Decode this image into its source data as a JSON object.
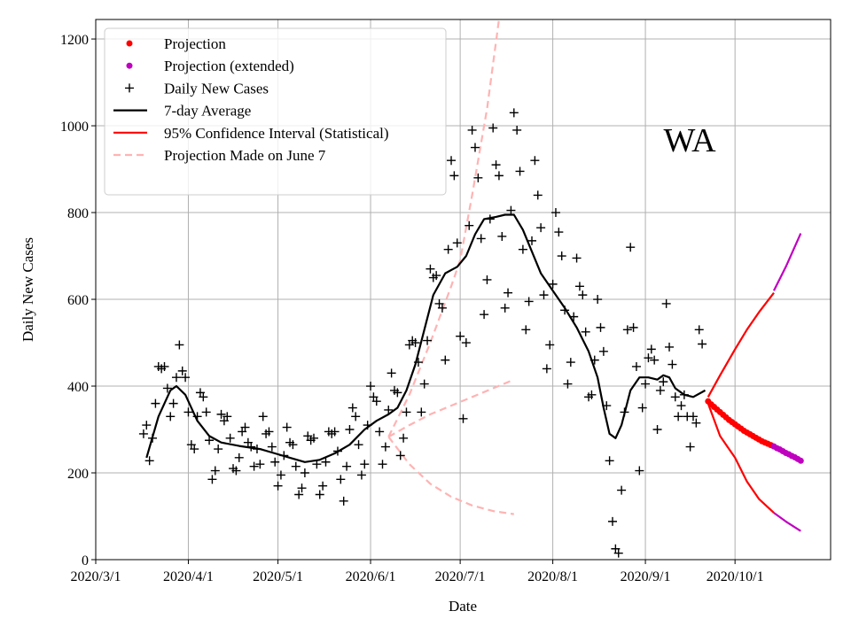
{
  "chart_data": {
    "type": "scatter",
    "annotation": "WA",
    "xlabel": "Date",
    "ylabel": "Daily New Cases",
    "xlim": [
      "2020/3/1",
      "2020/11/2"
    ],
    "ylim": [
      0,
      1245
    ],
    "grid": true,
    "legend_placement": "top-left",
    "x_ticks": [
      "2020/3/1",
      "2020/4/1",
      "2020/5/1",
      "2020/6/1",
      "2020/7/1",
      "2020/8/1",
      "2020/9/1",
      "2020/10/1"
    ],
    "y_ticks": [
      0,
      200,
      400,
      600,
      800,
      1000,
      1200
    ],
    "colors": {
      "daily": "#000000",
      "avg": "#000000",
      "projection": "#ff0000",
      "extended": "#bf00bf",
      "ci": "#ff0000",
      "june7": "#ffb3b3"
    },
    "legend": [
      {
        "label": "Projection",
        "kind": "dot",
        "color": "#ff0000"
      },
      {
        "label": "Projection (extended)",
        "kind": "dot",
        "color": "#bf00bf"
      },
      {
        "label": "Daily New Cases",
        "kind": "plus",
        "color": "#000000"
      },
      {
        "label": "7-day Average",
        "kind": "line",
        "color": "#000000"
      },
      {
        "label": "95% Confidence Interval (Statistical)",
        "kind": "line",
        "color": "#ff0000"
      },
      {
        "label": "Projection Made on June 7",
        "kind": "dash",
        "color": "#ffb3b3"
      }
    ],
    "daily_new_cases": [
      [
        "2020/3/17",
        290
      ],
      [
        "2020/3/18",
        310
      ],
      [
        "2020/3/19",
        228
      ],
      [
        "2020/3/20",
        280
      ],
      [
        "2020/3/21",
        360
      ],
      [
        "2020/3/22",
        445
      ],
      [
        "2020/3/23",
        440
      ],
      [
        "2020/3/24",
        445
      ],
      [
        "2020/3/25",
        395
      ],
      [
        "2020/3/26",
        330
      ],
      [
        "2020/3/27",
        360
      ],
      [
        "2020/3/28",
        420
      ],
      [
        "2020/3/29",
        495
      ],
      [
        "2020/3/30",
        435
      ],
      [
        "2020/3/31",
        420
      ],
      [
        "2020/4/1",
        340
      ],
      [
        "2020/4/2",
        265
      ],
      [
        "2020/4/3",
        255
      ],
      [
        "2020/4/4",
        330
      ],
      [
        "2020/4/5",
        385
      ],
      [
        "2020/4/6",
        375
      ],
      [
        "2020/4/7",
        340
      ],
      [
        "2020/4/8",
        275
      ],
      [
        "2020/4/9",
        185
      ],
      [
        "2020/4/10",
        205
      ],
      [
        "2020/4/11",
        255
      ],
      [
        "2020/4/12",
        335
      ],
      [
        "2020/4/13",
        320
      ],
      [
        "2020/4/14",
        330
      ],
      [
        "2020/4/15",
        280
      ],
      [
        "2020/4/16",
        210
      ],
      [
        "2020/4/17",
        205
      ],
      [
        "2020/4/18",
        235
      ],
      [
        "2020/4/19",
        295
      ],
      [
        "2020/4/20",
        305
      ],
      [
        "2020/4/21",
        270
      ],
      [
        "2020/4/22",
        260
      ],
      [
        "2020/4/23",
        215
      ],
      [
        "2020/4/24",
        255
      ],
      [
        "2020/4/25",
        220
      ],
      [
        "2020/4/26",
        330
      ],
      [
        "2020/4/27",
        290
      ],
      [
        "2020/4/28",
        295
      ],
      [
        "2020/4/29",
        260
      ],
      [
        "2020/4/30",
        225
      ],
      [
        "2020/5/1",
        170
      ],
      [
        "2020/5/2",
        195
      ],
      [
        "2020/5/3",
        240
      ],
      [
        "2020/5/4",
        305
      ],
      [
        "2020/5/5",
        270
      ],
      [
        "2020/5/6",
        265
      ],
      [
        "2020/5/7",
        215
      ],
      [
        "2020/5/8",
        150
      ],
      [
        "2020/5/9",
        165
      ],
      [
        "2020/5/10",
        200
      ],
      [
        "2020/5/11",
        285
      ],
      [
        "2020/5/12",
        275
      ],
      [
        "2020/5/13",
        280
      ],
      [
        "2020/5/14",
        220
      ],
      [
        "2020/5/15",
        150
      ],
      [
        "2020/5/16",
        170
      ],
      [
        "2020/5/17",
        225
      ],
      [
        "2020/5/18",
        295
      ],
      [
        "2020/5/19",
        290
      ],
      [
        "2020/5/20",
        295
      ],
      [
        "2020/5/21",
        250
      ],
      [
        "2020/5/22",
        185
      ],
      [
        "2020/5/23",
        135
      ],
      [
        "2020/5/24",
        215
      ],
      [
        "2020/5/25",
        300
      ],
      [
        "2020/5/26",
        350
      ],
      [
        "2020/5/27",
        330
      ],
      [
        "2020/5/28",
        265
      ],
      [
        "2020/5/29",
        195
      ],
      [
        "2020/5/30",
        220
      ],
      [
        "2020/5/31",
        310
      ],
      [
        "2020/6/1",
        400
      ],
      [
        "2020/6/2",
        375
      ],
      [
        "2020/6/3",
        365
      ],
      [
        "2020/6/4",
        295
      ],
      [
        "2020/6/5",
        220
      ],
      [
        "2020/6/6",
        260
      ],
      [
        "2020/6/7",
        345
      ],
      [
        "2020/6/8",
        430
      ],
      [
        "2020/6/9",
        390
      ],
      [
        "2020/6/10",
        385
      ],
      [
        "2020/6/11",
        240
      ],
      [
        "2020/6/12",
        280
      ],
      [
        "2020/6/13",
        340
      ],
      [
        "2020/6/14",
        495
      ],
      [
        "2020/6/15",
        505
      ],
      [
        "2020/6/16",
        500
      ],
      [
        "2020/6/17",
        455
      ],
      [
        "2020/6/18",
        340
      ],
      [
        "2020/6/19",
        405
      ],
      [
        "2020/6/20",
        505
      ],
      [
        "2020/6/21",
        670
      ],
      [
        "2020/6/22",
        650
      ],
      [
        "2020/6/23",
        655
      ],
      [
        "2020/6/24",
        590
      ],
      [
        "2020/6/25",
        580
      ],
      [
        "2020/6/26",
        460
      ],
      [
        "2020/6/27",
        715
      ],
      [
        "2020/6/28",
        920
      ],
      [
        "2020/6/29",
        885
      ],
      [
        "2020/6/30",
        730
      ],
      [
        "2020/7/1",
        515
      ],
      [
        "2020/7/2",
        325
      ],
      [
        "2020/7/3",
        500
      ],
      [
        "2020/7/4",
        770
      ],
      [
        "2020/7/5",
        990
      ],
      [
        "2020/7/6",
        950
      ],
      [
        "2020/7/7",
        880
      ],
      [
        "2020/7/8",
        740
      ],
      [
        "2020/7/9",
        565
      ],
      [
        "2020/7/10",
        645
      ],
      [
        "2020/7/11",
        785
      ],
      [
        "2020/7/12",
        995
      ],
      [
        "2020/7/13",
        910
      ],
      [
        "2020/7/14",
        885
      ],
      [
        "2020/7/15",
        745
      ],
      [
        "2020/7/16",
        580
      ],
      [
        "2020/7/17",
        615
      ],
      [
        "2020/7/18",
        805
      ],
      [
        "2020/7/19",
        1030
      ],
      [
        "2020/7/20",
        990
      ],
      [
        "2020/7/21",
        895
      ],
      [
        "2020/7/22",
        715
      ],
      [
        "2020/7/23",
        530
      ],
      [
        "2020/7/24",
        595
      ],
      [
        "2020/7/25",
        735
      ],
      [
        "2020/7/26",
        920
      ],
      [
        "2020/7/27",
        840
      ],
      [
        "2020/7/28",
        765
      ],
      [
        "2020/7/29",
        610
      ],
      [
        "2020/7/30",
        440
      ],
      [
        "2020/7/31",
        495
      ],
      [
        "2020/8/1",
        635
      ],
      [
        "2020/8/2",
        800
      ],
      [
        "2020/8/3",
        755
      ],
      [
        "2020/8/4",
        700
      ],
      [
        "2020/8/5",
        575
      ],
      [
        "2020/8/6",
        405
      ],
      [
        "2020/8/7",
        455
      ],
      [
        "2020/8/8",
        560
      ],
      [
        "2020/8/9",
        695
      ],
      [
        "2020/8/10",
        630
      ],
      [
        "2020/8/11",
        610
      ],
      [
        "2020/8/12",
        525
      ],
      [
        "2020/8/13",
        375
      ],
      [
        "2020/8/14",
        380
      ],
      [
        "2020/8/15",
        460
      ],
      [
        "2020/8/16",
        600
      ],
      [
        "2020/8/17",
        535
      ],
      [
        "2020/8/18",
        480
      ],
      [
        "2020/8/19",
        355
      ],
      [
        "2020/8/20",
        228
      ],
      [
        "2020/8/21",
        88
      ],
      [
        "2020/8/22",
        25
      ],
      [
        "2020/8/23",
        15
      ],
      [
        "2020/8/24",
        160
      ],
      [
        "2020/8/25",
        340
      ],
      [
        "2020/8/26",
        530
      ],
      [
        "2020/8/27",
        720
      ],
      [
        "2020/8/28",
        535
      ],
      [
        "2020/8/29",
        445
      ],
      [
        "2020/8/30",
        205
      ],
      [
        "2020/8/31",
        350
      ],
      [
        "2020/9/1",
        405
      ],
      [
        "2020/9/2",
        465
      ],
      [
        "2020/9/3",
        485
      ],
      [
        "2020/9/4",
        460
      ],
      [
        "2020/9/5",
        300
      ],
      [
        "2020/9/6",
        390
      ],
      [
        "2020/9/7",
        410
      ],
      [
        "2020/9/8",
        590
      ],
      [
        "2020/9/9",
        490
      ],
      [
        "2020/9/10",
        450
      ],
      [
        "2020/9/11",
        375
      ],
      [
        "2020/9/12",
        330
      ],
      [
        "2020/9/13",
        355
      ],
      [
        "2020/9/14",
        380
      ],
      [
        "2020/9/15",
        330
      ],
      [
        "2020/9/16",
        260
      ],
      [
        "2020/9/17",
        330
      ],
      [
        "2020/9/18",
        315
      ],
      [
        "2020/9/19",
        530
      ],
      [
        "2020/9/20",
        497
      ]
    ],
    "seven_day_average": [
      [
        "2020/3/18",
        235
      ],
      [
        "2020/3/22",
        330
      ],
      [
        "2020/3/26",
        390
      ],
      [
        "2020/3/28",
        400
      ],
      [
        "2020/3/31",
        380
      ],
      [
        "2020/4/4",
        320
      ],
      [
        "2020/4/8",
        285
      ],
      [
        "2020/4/12",
        270
      ],
      [
        "2020/4/18",
        262
      ],
      [
        "2020/4/25",
        255
      ],
      [
        "2020/4/30",
        245
      ],
      [
        "2020/5/5",
        235
      ],
      [
        "2020/5/10",
        225
      ],
      [
        "2020/5/15",
        230
      ],
      [
        "2020/5/20",
        245
      ],
      [
        "2020/5/25",
        265
      ],
      [
        "2020/5/30",
        300
      ],
      [
        "2020/6/3",
        320
      ],
      [
        "2020/6/7",
        335
      ],
      [
        "2020/6/10",
        350
      ],
      [
        "2020/6/13",
        390
      ],
      [
        "2020/6/16",
        450
      ],
      [
        "2020/6/19",
        530
      ],
      [
        "2020/6/22",
        610
      ],
      [
        "2020/6/26",
        660
      ],
      [
        "2020/6/30",
        675
      ],
      [
        "2020/7/3",
        700
      ],
      [
        "2020/7/6",
        750
      ],
      [
        "2020/7/9",
        785
      ],
      [
        "2020/7/13",
        790
      ],
      [
        "2020/7/16",
        795
      ],
      [
        "2020/7/19",
        795
      ],
      [
        "2020/7/22",
        760
      ],
      [
        "2020/7/25",
        710
      ],
      [
        "2020/7/28",
        660
      ],
      [
        "2020/8/1",
        620
      ],
      [
        "2020/8/5",
        580
      ],
      [
        "2020/8/9",
        535
      ],
      [
        "2020/8/13",
        480
      ],
      [
        "2020/8/16",
        420
      ],
      [
        "2020/8/18",
        350
      ],
      [
        "2020/8/20",
        290
      ],
      [
        "2020/8/22",
        280
      ],
      [
        "2020/8/24",
        310
      ],
      [
        "2020/8/27",
        390
      ],
      [
        "2020/8/30",
        420
      ],
      [
        "2020/9/2",
        420
      ],
      [
        "2020/9/5",
        415
      ],
      [
        "2020/9/7",
        425
      ],
      [
        "2020/9/9",
        420
      ],
      [
        "2020/9/11",
        395
      ],
      [
        "2020/9/14",
        380
      ],
      [
        "2020/9/17",
        375
      ],
      [
        "2020/9/21",
        390
      ]
    ],
    "projection": [
      [
        "2020/9/22",
        365
      ],
      [
        "2020/9/23",
        358
      ],
      [
        "2020/9/24",
        352
      ],
      [
        "2020/9/25",
        346
      ],
      [
        "2020/9/26",
        340
      ],
      [
        "2020/9/27",
        334
      ],
      [
        "2020/9/28",
        328
      ],
      [
        "2020/9/29",
        322
      ],
      [
        "2020/9/30",
        317
      ],
      [
        "2020/10/1",
        312
      ],
      [
        "2020/10/2",
        307
      ],
      [
        "2020/10/3",
        302
      ],
      [
        "2020/10/4",
        297
      ],
      [
        "2020/10/5",
        293
      ],
      [
        "2020/10/6",
        289
      ],
      [
        "2020/10/7",
        285
      ],
      [
        "2020/10/8",
        281
      ],
      [
        "2020/10/9",
        277
      ],
      [
        "2020/10/10",
        273
      ],
      [
        "2020/10/11",
        270
      ],
      [
        "2020/10/12",
        267
      ],
      [
        "2020/10/13",
        264
      ]
    ],
    "projection_extended": [
      [
        "2020/10/14",
        261
      ],
      [
        "2020/10/15",
        257
      ],
      [
        "2020/10/16",
        254
      ],
      [
        "2020/10/17",
        250
      ],
      [
        "2020/10/18",
        246
      ],
      [
        "2020/10/19",
        243
      ],
      [
        "2020/10/20",
        239
      ],
      [
        "2020/10/21",
        236
      ],
      [
        "2020/10/22",
        232
      ],
      [
        "2020/10/23",
        228
      ]
    ],
    "ci_upper": [
      [
        "2020/9/22",
        375
      ],
      [
        "2020/9/26",
        425
      ],
      [
        "2020/10/1",
        485
      ],
      [
        "2020/10/5",
        530
      ],
      [
        "2020/10/9",
        570
      ],
      [
        "2020/10/14",
        615
      ]
    ],
    "ci_lower": [
      [
        "2020/9/22",
        360
      ],
      [
        "2020/9/26",
        285
      ],
      [
        "2020/10/1",
        235
      ],
      [
        "2020/10/5",
        180
      ],
      [
        "2020/10/9",
        140
      ],
      [
        "2020/10/14",
        108
      ]
    ],
    "ci_upper_extended": [
      [
        "2020/10/14",
        620
      ],
      [
        "2020/10/18",
        675
      ],
      [
        "2020/10/23",
        752
      ]
    ],
    "ci_lower_extended": [
      [
        "2020/10/14",
        108
      ],
      [
        "2020/10/18",
        88
      ],
      [
        "2020/10/23",
        66
      ]
    ],
    "june7_projection": {
      "upper": [
        [
          "2020/6/7",
          283
        ],
        [
          "2020/6/14",
          380
        ],
        [
          "2020/6/21",
          500
        ],
        [
          "2020/6/28",
          630
        ],
        [
          "2020/7/1",
          690
        ],
        [
          "2020/7/5",
          840
        ],
        [
          "2020/7/10",
          1040
        ],
        [
          "2020/7/14",
          1245
        ]
      ],
      "middle": [
        [
          "2020/6/7",
          283
        ],
        [
          "2020/6/14",
          310
        ],
        [
          "2020/6/21",
          335
        ],
        [
          "2020/6/28",
          355
        ],
        [
          "2020/7/5",
          375
        ],
        [
          "2020/7/12",
          395
        ],
        [
          "2020/7/19",
          415
        ]
      ],
      "lower": [
        [
          "2020/6/7",
          283
        ],
        [
          "2020/6/14",
          220
        ],
        [
          "2020/6/21",
          175
        ],
        [
          "2020/6/28",
          145
        ],
        [
          "2020/7/5",
          125
        ],
        [
          "2020/7/12",
          112
        ],
        [
          "2020/7/19",
          105
        ]
      ]
    }
  }
}
